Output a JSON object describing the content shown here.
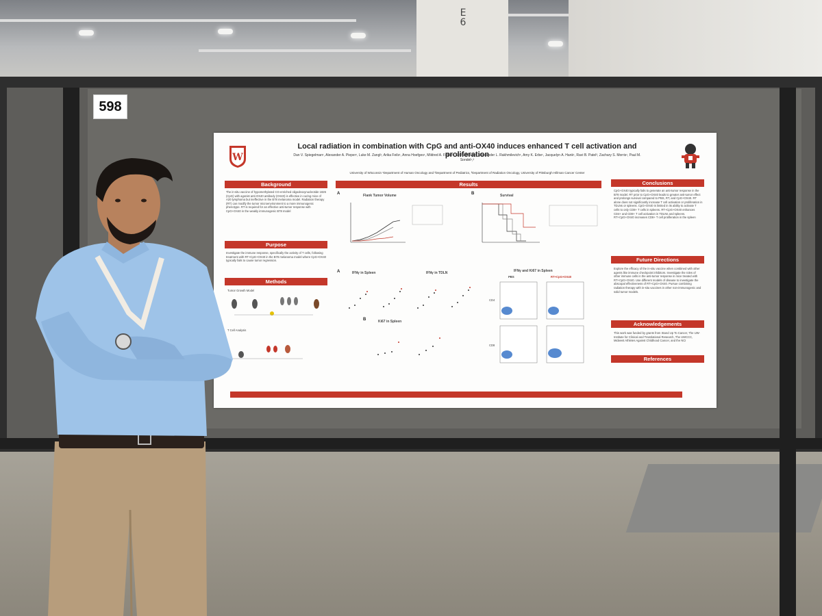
{
  "scene": {
    "booth_number": "598",
    "column_label": "E\n6"
  },
  "poster": {
    "title": "Local radiation in combination with CpG and anti-OX40 induces enhanced T cell activation and proliferation",
    "authors": "Dan V. Spiegelman¹, Alexander A. Pieper¹, Luke M. Zangl¹, Arika Feils¹, Anna Hoefges¹, Mildred A. Felder¹, Sritha Moram¹, Alexander L. Rakhmilevich¹, Amy K. Erbe¹, Jacquelyn A. Hank¹, Ravi B. Patel³, Zachary S. Morris¹, Paul M. Sondel¹,²",
    "affiliations": "University of Wisconsin ¹Department of Human Oncology and ²Department of Pediatrics, ³Department of Radiation Oncology, University of Pittsburgh Hillman Cancer Center",
    "sections": {
      "background": "Background",
      "purpose": "Purpose",
      "methods": "Methods",
      "results": "Results",
      "conclusions": "Conclusions",
      "future": "Future Directions",
      "ack": "Acknowledgements",
      "refs": "References"
    },
    "background_text": "The in-situ vaccine of hypomethylated CG-enriched oligodeoxynucleotide 1826 (CpG) with agonist anti-OX40 antibody (OX40) is effective in curing mice of A20 lymphoma but ineffective in the B78 melanoma model. Radiation therapy (RT) can modify the tumor microenvironment to a more immunogenic phenotype. RT is required for an effective anti-tumor response with CpG+OX40 in the weakly immunogenic B78 model",
    "purpose_text": "Investigate the immune response, specifically the activity of T cells, following treatment with RT+CpG+OX40 in the B78 melanoma model where CpG+OX40 typically fails to cause tumor regression.",
    "methods_labels": [
      "Tumor Growth Model",
      "T Cell Analysis"
    ],
    "fig_labels": {
      "flank": "Flank Tumor Volume",
      "survival": "Survival",
      "ifn_spleen": "IFNγ in Spleen",
      "ifn_tdln": "IFNγ in TDLN",
      "ki67_spleen": "Ki67 in Spleen",
      "flow": "IFNγ and Ki67 in Spleen",
      "pbs": "PBS",
      "rtcpg": "RT+CpG+OX40",
      "cd4": "CD4",
      "cd8": "CD8"
    },
    "conclusions_text": "CpG+OX40 typically fails to generate an anti-tumor response in the B78 model. RT prior to CpG+OX40 leads to greater anti-tumor effect and prolongs survival compared to PBS, RT, and CpG+OX40. RT alone does not significantly increase T cell activation or proliferation in TDLNs or spleens. CpG+OX40 is limited in its ability to activate T cells to only CD8+ T cells in spleens. RT+CpG+OX40 enhances CD4+ and CD8+ T cell activation in TDLNs and spleens. RT+CpG+OX40 increases CD8+ T cell proliferation in the spleen",
    "future_text": "Explore the efficacy of the in-situ vaccine when combined with other agents like immune checkpoint inhibitors. Investigate the roles of other immune cells in the anti-tumor response in mice treated with RT+CpG+OX40. Use different models of disease to investigate the abscopal effectiveness of RT+CpG+OX40. Pursue combining radiation therapy with in-situ vaccines in other non-immunogenic and solid tumor models.",
    "ack_text": "This work was funded by grants from Stand Up To Cancer, The UW-Institute for Clinical and Translational Research, The UWCCC, Midwest Athletes Against Childhood Cancer, and the NCI"
  },
  "colors": {
    "accent": "#c4372a",
    "shirt": "#9ec3e8",
    "pants": "#b79d7c"
  }
}
